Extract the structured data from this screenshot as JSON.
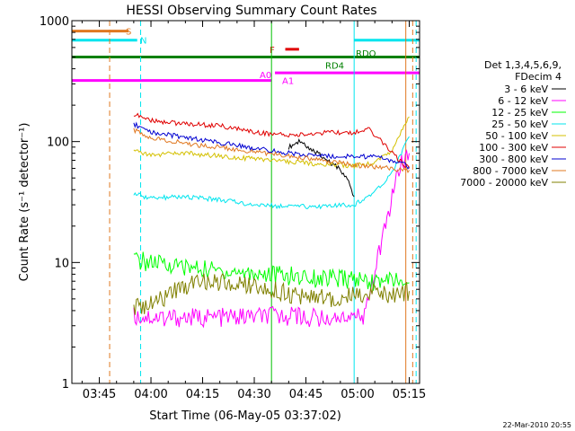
{
  "chart_data": {
    "type": "line",
    "title": "HESSI Observing Summary Count Rates",
    "xlabel": "Start Time (06-May-05 03:37:02)",
    "ylabel": "Count Rate (s⁻¹ detector⁻¹)",
    "yscale": "log",
    "ylim": [
      1,
      1000
    ],
    "xlim": [
      "03:37:02",
      "05:18:00"
    ],
    "x_ticks": [
      "03:45",
      "04:00",
      "04:15",
      "04:30",
      "04:45",
      "05:00",
      "05:15"
    ],
    "y_ticks": [
      "1",
      "10",
      "100",
      "1000"
    ],
    "timestamp": "22-Mar-2010 20:55",
    "legend_header": [
      "Det 1,3,4,5,6,9,",
      "FDecim 4"
    ],
    "flag_labels": {
      "S": "S",
      "N": "N",
      "F": "F",
      "RD4": "RD4",
      "RDO": "RDO",
      "A0": "A0",
      "A1": "A1"
    },
    "flags": [
      {
        "label": "S",
        "color": "#e07820",
        "start": "03:37:02",
        "end": "03:53:30",
        "y": 820
      },
      {
        "label": "N",
        "color": "#00e5ee",
        "start": "03:37:02",
        "end": "03:56:00",
        "y": 690
      },
      {
        "label": "N",
        "color": "#00e5ee",
        "start": "04:59:00",
        "end": "05:18:00",
        "y": 690
      },
      {
        "label": "F",
        "color": "#e00000",
        "start": "04:39:00",
        "end": "04:43:00",
        "y": 580
      },
      {
        "label": "RD4",
        "color": "#008000",
        "start": "03:37:02",
        "end": "05:18:00",
        "y": 500
      },
      {
        "label": "A1",
        "color": "#ff00ff",
        "start": "04:36:00",
        "end": "05:18:00",
        "y": 370
      },
      {
        "label": "A0",
        "color": "#ff00ff",
        "start": "03:37:02",
        "end": "04:35:00",
        "y": 320
      }
    ],
    "vlines": [
      {
        "time": "03:37:02",
        "color": "#00e5ee",
        "dashed": false
      },
      {
        "time": "03:48:00",
        "color": "#e07820",
        "dashed": true
      },
      {
        "time": "03:57:00",
        "color": "#00e5ee",
        "dashed": true
      },
      {
        "time": "04:35:00",
        "color": "#00c000",
        "dashed": false
      },
      {
        "time": "04:59:00",
        "color": "#00e5ee",
        "dashed": false
      },
      {
        "time": "05:14:00",
        "color": "#e07820",
        "dashed": false
      },
      {
        "time": "05:16:00",
        "color": "#e07820",
        "dashed": true
      },
      {
        "time": "05:17:00",
        "color": "#00e5ee",
        "dashed": true
      }
    ],
    "series": [
      {
        "name": "3 - 6 keV",
        "color": "#000000",
        "x": [
          "04:40:00",
          "04:43:00",
          "04:46:00",
          "04:49:00",
          "04:51:00",
          "04:54:00",
          "04:57:00",
          "04:59:00"
        ],
        "values": [
          90,
          100,
          88,
          80,
          70,
          62,
          50,
          35
        ]
      },
      {
        "name": "6 - 12 keV",
        "color": "#ff00ff",
        "x": [
          "03:55:00",
          "04:05:00",
          "04:20:00",
          "04:35:00",
          "04:38:00",
          "04:42:00",
          "04:46:00",
          "04:50:00",
          "04:55:00",
          "04:59:00",
          "05:02:00",
          "05:12:00",
          "05:15:00"
        ],
        "values": [
          3.6,
          3.5,
          3.5,
          3.6,
          3.6,
          3.6,
          3.5,
          3.5,
          3.5,
          3.4,
          3.6,
          60,
          80
        ]
      },
      {
        "name": "12 - 25 keV",
        "color": "#00ff00",
        "x": [
          "03:55:00",
          "04:05:00",
          "04:20:00",
          "04:35:00",
          "04:45:00",
          "04:59:00",
          "05:05:00",
          "05:12:00",
          "05:15:00"
        ],
        "values": [
          10.5,
          9.5,
          8.5,
          8.0,
          7.5,
          7.2,
          7.0,
          7.0,
          6.8
        ]
      },
      {
        "name": "25 - 50 keV",
        "color": "#00e5ee",
        "x": [
          "03:55:00",
          "04:00:00",
          "04:10:00",
          "04:20:00",
          "04:30:00",
          "04:40:00",
          "04:50:00",
          "04:59:00",
          "05:05:00",
          "05:10:00",
          "05:15:00"
        ],
        "values": [
          37,
          34,
          35,
          33,
          30,
          29,
          29,
          30,
          38,
          55,
          110
        ]
      },
      {
        "name": "50 - 100 keV",
        "color": "#d4c000",
        "x": [
          "03:55:00",
          "04:00:00",
          "04:10:00",
          "04:20:00",
          "04:30:00",
          "04:40:00",
          "04:50:00",
          "04:59:00",
          "05:05:00",
          "05:10:00",
          "05:15:00"
        ],
        "values": [
          83,
          78,
          80,
          76,
          72,
          68,
          65,
          63,
          66,
          85,
          160
        ]
      },
      {
        "name": "100 - 300 keV",
        "color": "#e00000",
        "x": [
          "03:55:00",
          "04:00:00",
          "04:10:00",
          "04:20:00",
          "04:30:00",
          "04:40:00",
          "04:50:00",
          "04:59:00",
          "05:03:00",
          "05:07:00",
          "05:12:00",
          "05:15:00"
        ],
        "values": [
          168,
          150,
          140,
          135,
          120,
          112,
          118,
          118,
          130,
          100,
          70,
          60
        ]
      },
      {
        "name": "300 - 800 keV",
        "color": "#0000d0",
        "x": [
          "03:55:00",
          "04:00:00",
          "04:10:00",
          "04:20:00",
          "04:30:00",
          "04:40:00",
          "04:50:00",
          "04:59:00",
          "05:05:00",
          "05:10:00",
          "05:15:00"
        ],
        "values": [
          140,
          120,
          108,
          98,
          88,
          80,
          76,
          75,
          75,
          70,
          62
        ]
      },
      {
        "name": "800 - 7000 keV",
        "color": "#e07820",
        "x": [
          "03:55:00",
          "04:00:00",
          "04:10:00",
          "04:20:00",
          "04:30:00",
          "04:40:00",
          "04:50:00",
          "04:59:00",
          "05:05:00",
          "05:10:00",
          "05:15:00"
        ],
        "values": [
          125,
          108,
          96,
          90,
          82,
          76,
          70,
          64,
          62,
          60,
          58
        ]
      },
      {
        "name": "7000 - 20000 keV",
        "color": "#808000",
        "x": [
          "03:55:00",
          "04:00:00",
          "04:10:00",
          "04:20:00",
          "04:30:00",
          "04:40:00",
          "04:50:00",
          "04:59:00",
          "05:05:00",
          "05:10:00",
          "05:15:00"
        ],
        "values": [
          4.2,
          4.4,
          6.5,
          7.0,
          6.5,
          5.5,
          5.0,
          5.5,
          5.5,
          5.5,
          5.8
        ]
      }
    ]
  }
}
